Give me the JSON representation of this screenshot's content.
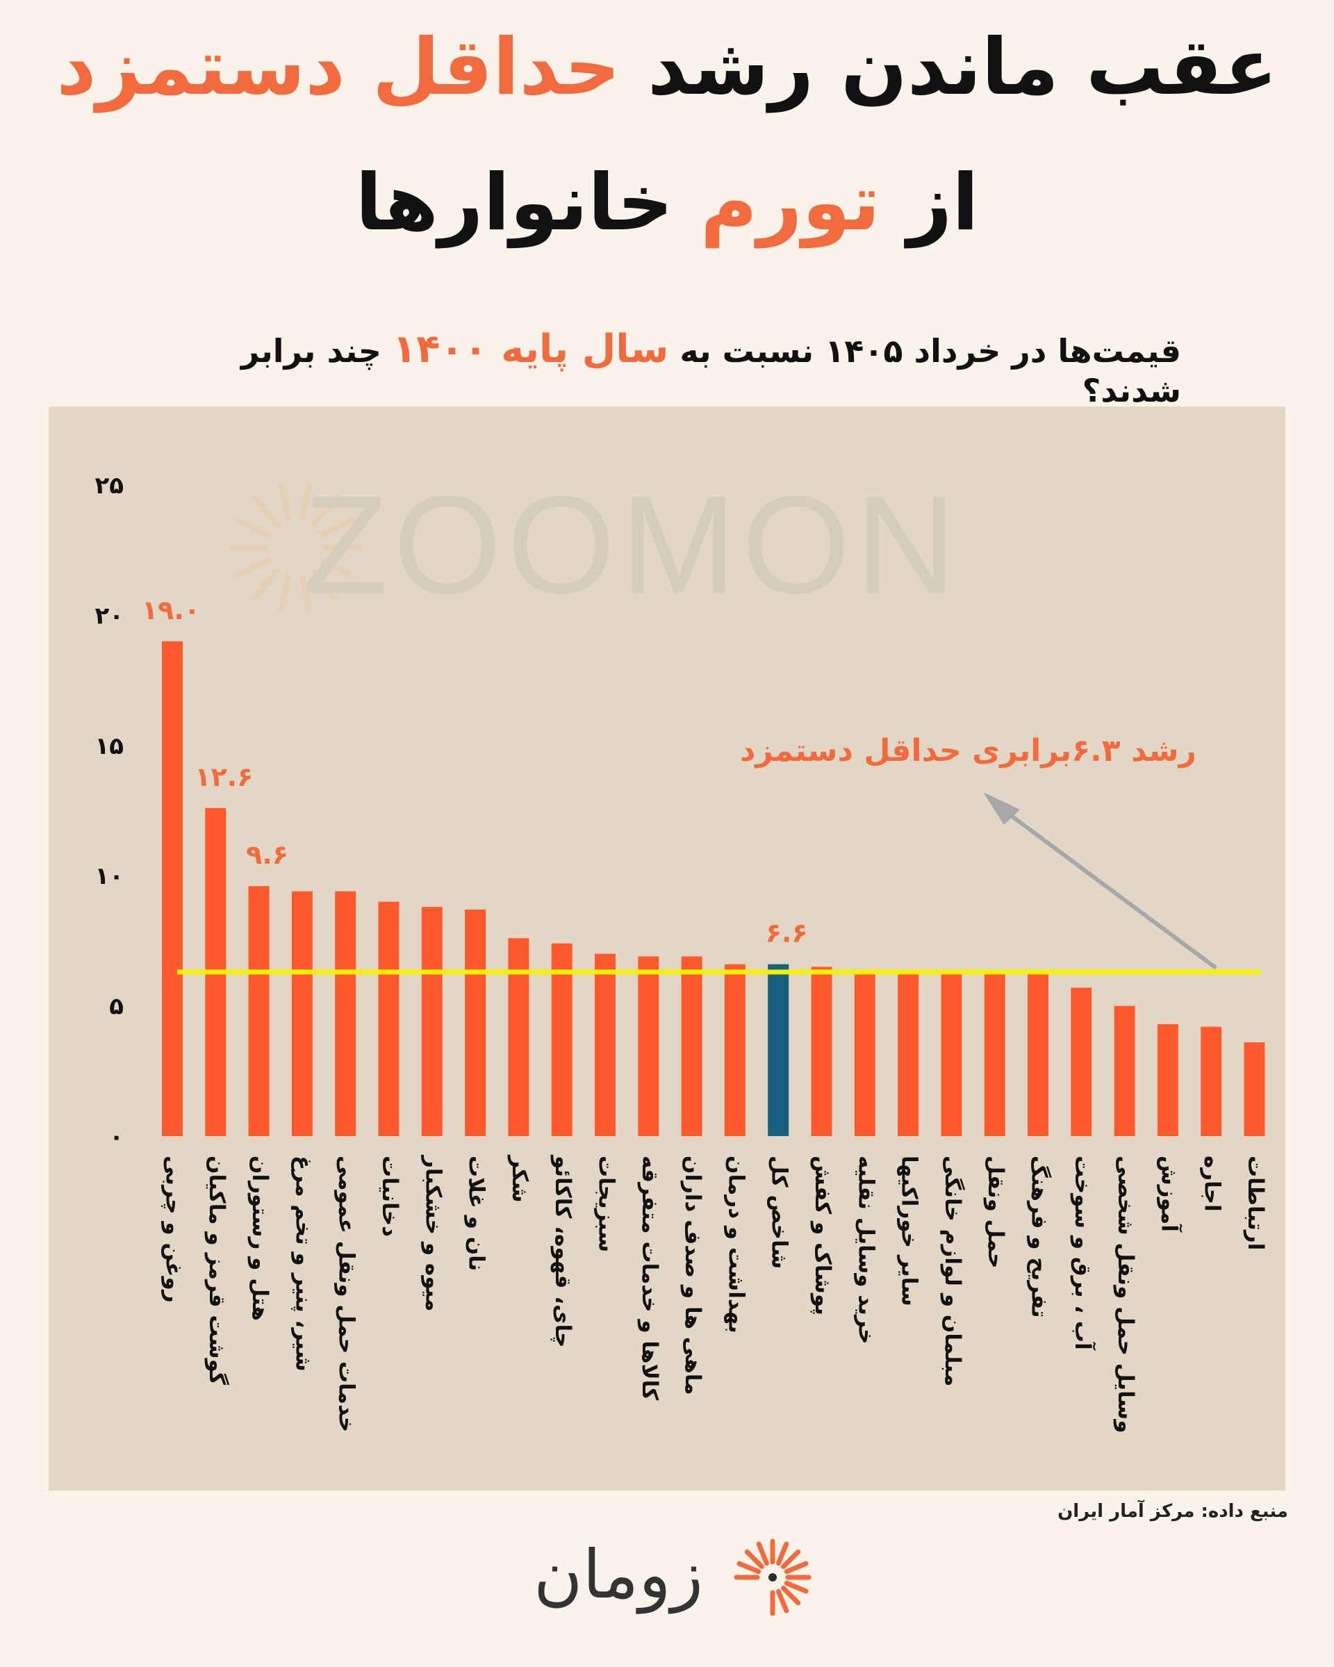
{
  "title": {
    "line1_parts": [
      {
        "text": "عقب ماندن رشد ",
        "highlight": false
      },
      {
        "text": "حداقل دستمزد",
        "highlight": true
      }
    ],
    "line2_parts": [
      {
        "text": "از ",
        "highlight": false
      },
      {
        "text": "تورم",
        "highlight": true
      },
      {
        "text": " خانوارها",
        "highlight": false
      }
    ]
  },
  "subtitle_parts": [
    {
      "text": "قیمت‌ها در خرداد ۱۴۰۵ نسبت به ",
      "highlight": false
    },
    {
      "text": "سال پایه ۱۴۰۰",
      "highlight": true
    },
    {
      "text": " چند برابر شدند؟",
      "highlight": false
    }
  ],
  "watermark": "ZOOMON",
  "source": "منبع داده: مرکز آمار ایران",
  "brand": "زومان",
  "colors": {
    "accent": "#f26a3d",
    "bar": "#fe5a2e",
    "highlight_bar": "#17607f",
    "reference_line": "#f2f200",
    "panel": "#e2d7c4",
    "background": "#f9f3ea",
    "arrow": "#a5a7a9"
  },
  "chart_data": {
    "type": "bar",
    "categories": [
      "روغن و چربی",
      "گوشت قرمز و ماکیان",
      "هتل و رستوران",
      "شیر، پنیر و تخم مرغ",
      "خدمات حمل ونقل عمومی",
      "دخانیات",
      "میوه و خشکبار",
      "نان و غلات",
      "شکر",
      "چای، قهوه، کاکائو",
      "سبزیجات",
      "کالاها و خدمات متفرقه",
      "ماهی ها و صدف داران",
      "بهداشت و درمان",
      "شاخص کل",
      "پوشاک و کفش",
      "خرید وسایل نقلیه",
      "سایر خوراکیها",
      "مبلمان و لوازم خانگی",
      "حمل ونقل",
      "تفریح و فرهنگ",
      "آب ، برق و سوخت",
      "وسایل حمل ونقل شخصی",
      "آموزش",
      "اجاره",
      "ارتباطات"
    ],
    "values": [
      19.0,
      12.6,
      9.6,
      9.4,
      9.4,
      9.0,
      8.8,
      8.7,
      7.6,
      7.4,
      7.0,
      6.9,
      6.9,
      6.6,
      6.6,
      6.5,
      6.3,
      6.3,
      6.3,
      6.3,
      6.3,
      5.7,
      5.0,
      4.3,
      4.2,
      3.6
    ],
    "highlight_category": "شاخص کل",
    "data_labels": [
      {
        "category": "روغن و چربی",
        "text": "۱۹.۰"
      },
      {
        "category": "گوشت قرمز و ماکیان",
        "text": "۱۲.۶"
      },
      {
        "category": "هتل و رستوران",
        "text": "۹.۶"
      },
      {
        "category": "شاخص کل",
        "text": "۶.۶"
      }
    ],
    "yticks": [
      0,
      5,
      10,
      15,
      20,
      25
    ],
    "ytick_labels": [
      "۰",
      "۵",
      "۱۰",
      "۱۵",
      "۲۰",
      "۲۵"
    ],
    "ylim": [
      0,
      25
    ],
    "reference_line": {
      "value": 6.3,
      "label": "رشد  ۶.۳برابری حداقل دستمزد"
    },
    "grid": false,
    "legend": "none",
    "title": "",
    "xlabel": "",
    "ylabel": ""
  }
}
